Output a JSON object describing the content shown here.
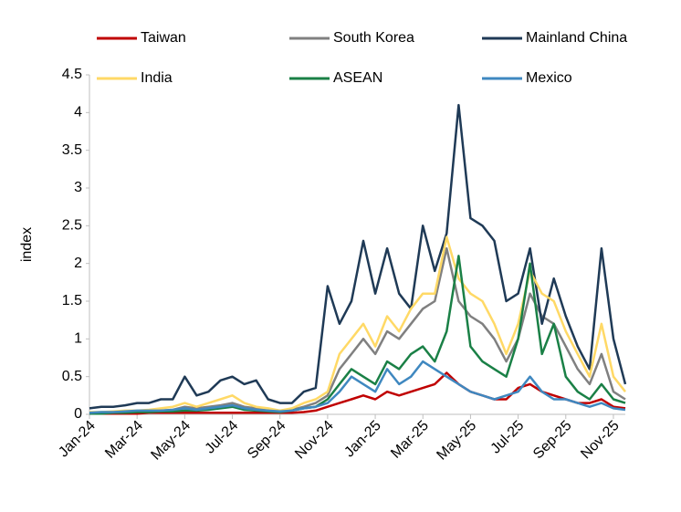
{
  "chart_data": {
    "type": "line",
    "y_label": "index",
    "x": [
      0,
      0.5,
      1,
      1.5,
      2,
      2.5,
      3,
      3.5,
      4,
      4.5,
      5,
      5.5,
      6,
      6.5,
      7,
      7.5,
      8,
      8.5,
      9,
      9.5,
      10,
      10.5,
      11,
      11.5,
      12,
      12.5,
      13,
      13.5,
      14,
      14.5,
      15,
      15.5,
      16,
      16.5,
      17,
      17.5,
      18,
      18.5,
      19,
      19.5,
      20,
      20.5,
      21,
      21.5,
      22,
      22.5
    ],
    "xlim": [
      0,
      22.5
    ],
    "xticks": [
      {
        "value": 0,
        "label": "Jan-24"
      },
      {
        "value": 2,
        "label": "Mar-24"
      },
      {
        "value": 4,
        "label": "May-24"
      },
      {
        "value": 6,
        "label": "Jul-24"
      },
      {
        "value": 8,
        "label": "Sep-24"
      },
      {
        "value": 10,
        "label": "Nov-24"
      },
      {
        "value": 12,
        "label": "Jan-25"
      },
      {
        "value": 14,
        "label": "Mar-25"
      },
      {
        "value": 16,
        "label": "May-25"
      },
      {
        "value": 18,
        "label": "Jul-25"
      },
      {
        "value": 20,
        "label": "Sep-25"
      },
      {
        "value": 22,
        "label": "Nov-25"
      }
    ],
    "ylim": [
      0,
      4.5
    ],
    "yticks": [
      0,
      0.5,
      1,
      1.5,
      2,
      2.5,
      3,
      3.5,
      4,
      4.5
    ],
    "series": [
      {
        "name": "Taiwan",
        "color": "#c00000",
        "values": [
          0.01,
          0.01,
          0.01,
          0.01,
          0.01,
          0.02,
          0.02,
          0.02,
          0.02,
          0.02,
          0.02,
          0.02,
          0.02,
          0.02,
          0.02,
          0.02,
          0.02,
          0.02,
          0.03,
          0.05,
          0.1,
          0.15,
          0.2,
          0.25,
          0.2,
          0.3,
          0.25,
          0.3,
          0.35,
          0.4,
          0.55,
          0.4,
          0.3,
          0.25,
          0.2,
          0.2,
          0.35,
          0.4,
          0.3,
          0.25,
          0.2,
          0.15,
          0.15,
          0.2,
          0.1,
          0.08
        ]
      },
      {
        "name": "South Korea",
        "color": "#808080",
        "values": [
          0.02,
          0.02,
          0.03,
          0.03,
          0.04,
          0.05,
          0.05,
          0.06,
          0.1,
          0.08,
          0.1,
          0.12,
          0.15,
          0.1,
          0.08,
          0.06,
          0.05,
          0.06,
          0.1,
          0.15,
          0.25,
          0.6,
          0.8,
          1.0,
          0.8,
          1.1,
          1.0,
          1.2,
          1.4,
          1.5,
          2.2,
          1.5,
          1.3,
          1.2,
          1.0,
          0.7,
          1.0,
          1.6,
          1.3,
          1.2,
          0.9,
          0.6,
          0.4,
          0.8,
          0.3,
          0.2
        ]
      },
      {
        "name": "Mainland China",
        "color": "#1f3a56",
        "values": [
          0.08,
          0.1,
          0.1,
          0.12,
          0.15,
          0.15,
          0.2,
          0.2,
          0.5,
          0.25,
          0.3,
          0.45,
          0.5,
          0.4,
          0.45,
          0.2,
          0.15,
          0.15,
          0.3,
          0.35,
          1.7,
          1.2,
          1.5,
          2.3,
          1.6,
          2.2,
          1.6,
          1.4,
          2.5,
          1.9,
          2.4,
          4.1,
          2.6,
          2.5,
          2.3,
          1.5,
          1.6,
          2.2,
          1.2,
          1.8,
          1.3,
          0.9,
          0.6,
          2.2,
          1.0,
          0.4
        ]
      },
      {
        "name": "India",
        "color": "#ffd966",
        "values": [
          0.03,
          0.03,
          0.04,
          0.05,
          0.05,
          0.06,
          0.08,
          0.1,
          0.15,
          0.1,
          0.15,
          0.2,
          0.25,
          0.15,
          0.1,
          0.08,
          0.05,
          0.08,
          0.15,
          0.2,
          0.3,
          0.8,
          1.0,
          1.2,
          0.9,
          1.3,
          1.1,
          1.4,
          1.6,
          1.6,
          2.35,
          1.8,
          1.6,
          1.5,
          1.2,
          0.8,
          1.2,
          1.9,
          1.6,
          1.5,
          1.1,
          0.8,
          0.5,
          1.2,
          0.5,
          0.3
        ]
      },
      {
        "name": "ASEAN",
        "color": "#1a8046",
        "values": [
          0.01,
          0.01,
          0.02,
          0.02,
          0.03,
          0.03,
          0.04,
          0.04,
          0.05,
          0.05,
          0.06,
          0.08,
          0.1,
          0.06,
          0.05,
          0.04,
          0.03,
          0.05,
          0.08,
          0.1,
          0.2,
          0.4,
          0.6,
          0.5,
          0.4,
          0.7,
          0.6,
          0.8,
          0.9,
          0.7,
          1.1,
          2.1,
          0.9,
          0.7,
          0.6,
          0.5,
          1.0,
          2.0,
          0.8,
          1.2,
          0.5,
          0.3,
          0.2,
          0.4,
          0.2,
          0.15
        ]
      },
      {
        "name": "Mexico",
        "color": "#3f88c0",
        "values": [
          0.02,
          0.03,
          0.03,
          0.04,
          0.05,
          0.05,
          0.05,
          0.06,
          0.08,
          0.06,
          0.08,
          0.1,
          0.12,
          0.08,
          0.06,
          0.05,
          0.04,
          0.05,
          0.08,
          0.1,
          0.15,
          0.3,
          0.5,
          0.4,
          0.3,
          0.6,
          0.4,
          0.5,
          0.7,
          0.6,
          0.5,
          0.4,
          0.3,
          0.25,
          0.2,
          0.25,
          0.3,
          0.5,
          0.3,
          0.2,
          0.2,
          0.15,
          0.1,
          0.15,
          0.08,
          0.06
        ]
      }
    ]
  }
}
